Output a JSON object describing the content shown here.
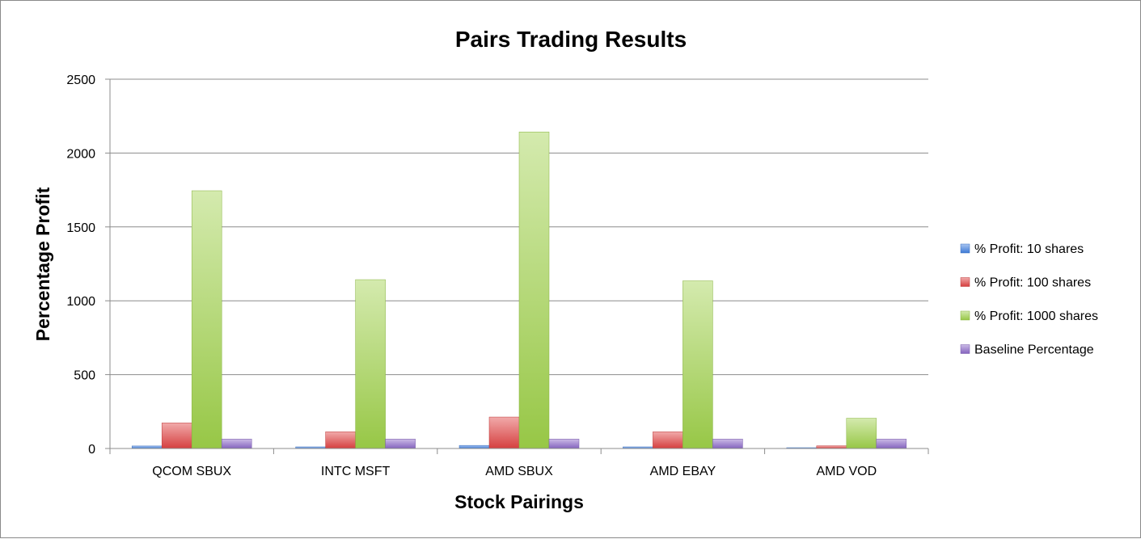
{
  "chart_data": {
    "type": "bar",
    "title": "Pairs Trading Results",
    "xlabel": "Stock Pairings",
    "ylabel": "Percentage Profit",
    "ylim": [
      0,
      2500
    ],
    "yticks": [
      0,
      500,
      1000,
      1500,
      2000,
      2500
    ],
    "grid": true,
    "legend_position": "right",
    "categories": [
      "QCOM SBUX",
      "INTC MSFT",
      "AMD SBUX",
      "AMD EBAY",
      "AMD VOD"
    ],
    "series": [
      {
        "name": "% Profit: 10 shares",
        "color": "#3f7fe0",
        "values": [
          17,
          11,
          21,
          11,
          2
        ]
      },
      {
        "name": "% Profit: 100 shares",
        "color": "#e04242",
        "values": [
          173,
          113,
          213,
          113,
          18
        ]
      },
      {
        "name": "% Profit: 1000 shares",
        "color": "#9fd14a",
        "values": [
          1745,
          1143,
          2143,
          1135,
          205
        ]
      },
      {
        "name": "Baseline Percentage",
        "color": "#8b68c8",
        "values": [
          64,
          64,
          64,
          64,
          64
        ]
      }
    ]
  }
}
